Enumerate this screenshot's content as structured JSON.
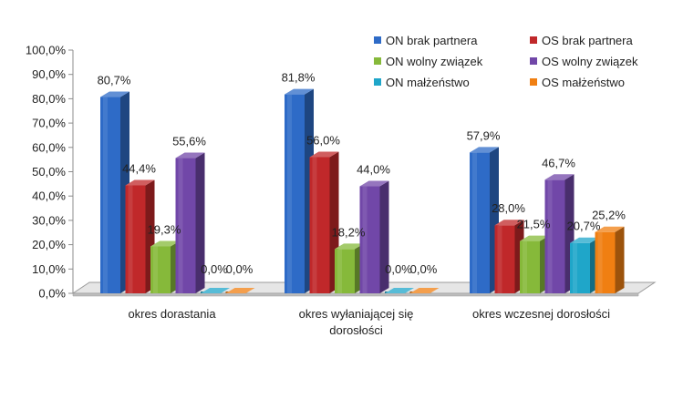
{
  "chart_data": {
    "type": "bar",
    "title": "",
    "xlabel": "",
    "ylabel": "",
    "ylim": [
      0,
      100
    ],
    "y_ticks": [
      "0,0%",
      "10,0%",
      "20,0%",
      "30,0%",
      "40,0%",
      "50,0%",
      "60,0%",
      "70,0%",
      "80,0%",
      "90,0%",
      "100,0%"
    ],
    "categories": [
      [
        "okres dorastania"
      ],
      [
        "okres wyłaniającej się",
        "dorosłości"
      ],
      [
        "okres wczesnej dorosłości"
      ]
    ],
    "legend_position": "top-right",
    "grid": false,
    "series": [
      {
        "name": "ON brak partnera",
        "color": "#2e6bc7",
        "values": [
          80.7,
          81.8,
          57.9
        ],
        "labels": [
          "80,7%",
          "81,8%",
          "57,9%"
        ]
      },
      {
        "name": "OS brak partnera",
        "color": "#c0282a",
        "values": [
          44.4,
          56.0,
          28.0
        ],
        "labels": [
          "44,4%",
          "56,0%",
          "28,0%"
        ]
      },
      {
        "name": "ON wolny związek",
        "color": "#86b93a",
        "values": [
          19.3,
          18.2,
          21.5
        ],
        "labels": [
          "19,3%",
          "18,2%",
          "21,5%"
        ]
      },
      {
        "name": "OS wolny związek",
        "color": "#7147a8",
        "values": [
          55.6,
          44.0,
          46.7
        ],
        "labels": [
          "55,6%",
          "44,0%",
          "46,7%"
        ]
      },
      {
        "name": "ON małżeństwo",
        "color": "#1fa6c9",
        "values": [
          0.0,
          0.0,
          20.7
        ],
        "labels": [
          "0,0%",
          "0,0%",
          "20,7%"
        ]
      },
      {
        "name": "OS małżeństwo",
        "color": "#f07f12",
        "values": [
          0.0,
          0.0,
          25.2
        ],
        "labels": [
          "0,0%",
          "0,0%",
          "25,2%"
        ]
      }
    ]
  }
}
